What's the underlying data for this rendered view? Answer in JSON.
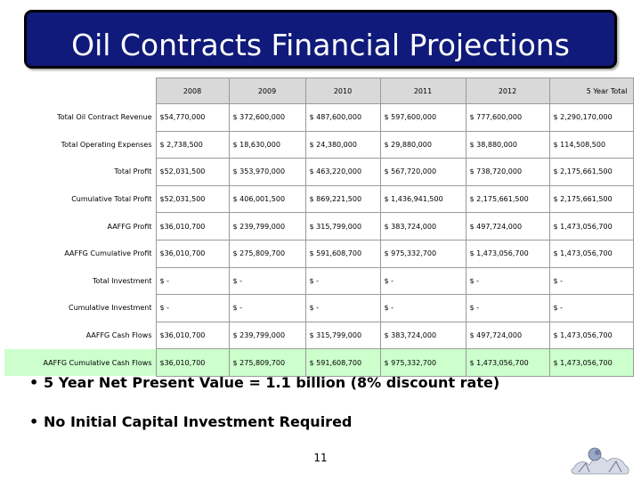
{
  "slide": {
    "title": "Oil Contracts Financial Projections",
    "page_number": "11"
  },
  "table": {
    "header": [
      "2008",
      "2009",
      "2010",
      "2011",
      "2012",
      "5 Year Total"
    ],
    "rows": [
      {
        "label": "Total Oil Contract Revenue",
        "values": [
          "$54,770,000",
          "$ 372,600,000",
          "$ 487,600,000",
          "$ 597,600,000",
          "$ 777,600,000",
          "$ 2,290,170,000"
        ]
      },
      {
        "label": "Total Operating Expenses",
        "values": [
          "$ 2,738,500",
          "$ 18,630,000",
          "$ 24,380,000",
          "$ 29,880,000",
          "$ 38,880,000",
          "$ 114,508,500"
        ]
      },
      {
        "label": "Total Profit",
        "values": [
          "$52,031,500",
          "$ 353,970,000",
          "$ 463,220,000",
          "$ 567,720,000",
          "$ 738,720,000",
          "$ 2,175,661,500"
        ]
      },
      {
        "label": "Cumulative Total Profit",
        "values": [
          "$52,031,500",
          "$ 406,001,500",
          "$ 869,221,500",
          "$ 1,436,941,500",
          "$ 2,175,661,500",
          "$ 2,175,661,500"
        ]
      },
      {
        "label": "AAFFG Profit",
        "values": [
          "$36,010,700",
          "$ 239,799,000",
          "$ 315,799,000",
          "$ 383,724,000",
          "$ 497,724,000",
          "$ 1,473,056,700"
        ]
      },
      {
        "label": "AAFFG Cumulative Profit",
        "values": [
          "$36,010,700",
          "$ 275,809,700",
          "$ 591,608,700",
          "$ 975,332,700",
          "$ 1,473,056,700",
          "$ 1,473,056,700"
        ]
      },
      {
        "label": "Total Investment",
        "values": [
          "$ -",
          "$ -",
          "$ -",
          "$ -",
          "$ -",
          "$ -"
        ]
      },
      {
        "label": "Cumulative Investment",
        "values": [
          "$ -",
          "$ -",
          "$ -",
          "$ -",
          "$ -",
          "$ -"
        ]
      },
      {
        "label": "AAFFG Cash Flows",
        "values": [
          "$36,010,700",
          "$ 239,799,000",
          "$ 315,799,000",
          "$ 383,724,000",
          "$ 497,724,000",
          "$ 1,473,056,700"
        ]
      },
      {
        "label": "AAFFG Cumulative Cash Flows",
        "values": [
          "$36,010,700",
          "$ 275,809,700",
          "$ 591,608,700",
          "$ 975,332,700",
          "$ 1,473,056,700",
          "$ 1,473,056,700"
        ]
      }
    ]
  },
  "bullets": [
    "5 Year Net Present Value = 1.1 billion (8% discount rate)",
    "No Initial Capital Investment Required"
  ],
  "colors": {
    "title_bg": "#0f1a7a",
    "header_bg": "#d9d9d9",
    "highlight_row_bg": "#ccffcc"
  },
  "icons": {
    "bottom_right_logo": "logo-icon"
  }
}
